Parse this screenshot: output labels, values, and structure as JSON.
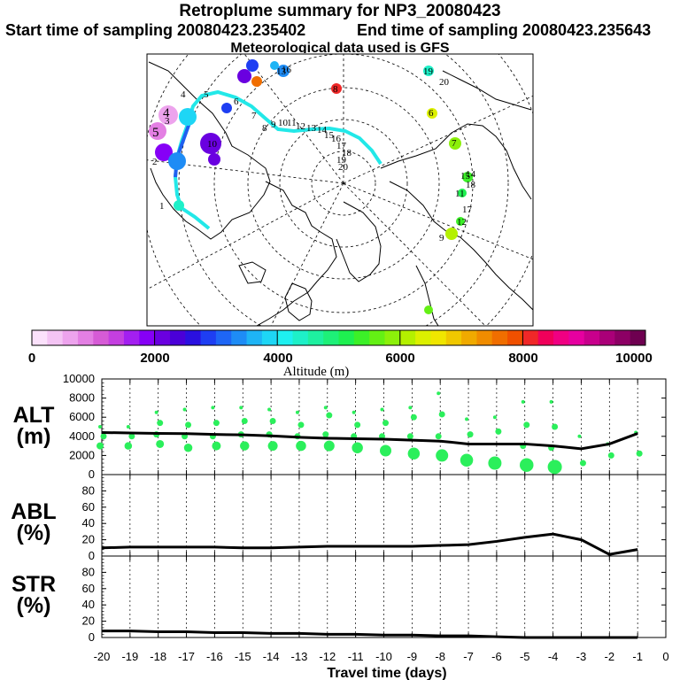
{
  "header": {
    "title": "Retroplume summary for NP3_20080423",
    "start_label": "Start time of sampling 20080423.235402",
    "end_label": "End time of sampling 20080423.235643",
    "met_label": "Meteorological data used is GFS"
  },
  "colorbar": {
    "title": "Altitude (m)",
    "tick_labels": [
      "0",
      "2000",
      "4000",
      "6000",
      "8000",
      "10000"
    ],
    "min": 0,
    "max": 10000,
    "colors": [
      "#fbe1fb",
      "#f4c4f4",
      "#eda3ed",
      "#e37fe3",
      "#d65bd6",
      "#c43fe0",
      "#a31ff0",
      "#8600f6",
      "#6a00e0",
      "#4a00d8",
      "#2a10e0",
      "#1e3ef2",
      "#1e66f5",
      "#1e8cf5",
      "#1eb4f5",
      "#1ed6f5",
      "#1ef0f0",
      "#1ef0c8",
      "#1ef0a0",
      "#1ef078",
      "#1ef050",
      "#3cf028",
      "#64f014",
      "#8cf00a",
      "#b4f000",
      "#dcf000",
      "#f0e600",
      "#f0c800",
      "#f0aa00",
      "#f08c00",
      "#f06e00",
      "#f05000",
      "#f02828",
      "#f0005a",
      "#f00082",
      "#e600a0",
      "#c8008c",
      "#aa0078",
      "#8c0064",
      "#6e0050"
    ]
  },
  "map": {
    "trajectory_labels": [
      "4",
      "5",
      "6",
      "7",
      "8",
      "9",
      "10",
      "11",
      "12",
      "13",
      "14",
      "15",
      "16",
      "17",
      "18",
      "19",
      "20"
    ],
    "cluster_labels": [
      "1",
      "2",
      "3",
      "4",
      "5",
      "6",
      "7",
      "8",
      "9",
      "10",
      "11",
      "12",
      "13",
      "14",
      "15",
      "16",
      "17",
      "18",
      "19",
      "20"
    ]
  },
  "chart_data": [
    {
      "type": "scatter",
      "title": "ALT (m)",
      "ylabel_line1": "ALT",
      "ylabel_line2": "(m)",
      "ylim": [
        0,
        10000
      ],
      "yticks": [
        "0",
        "2000",
        "4000",
        "6000",
        "8000",
        "10000"
      ],
      "xlim": [
        -20,
        0
      ],
      "mean_line": {
        "x": [
          -20,
          -19,
          -18,
          -17,
          -16,
          -15,
          -14,
          -13,
          -12,
          -11,
          -10,
          -9,
          -8,
          -7,
          -6,
          -5,
          -4,
          -3,
          -2,
          -1
        ],
        "y": [
          4400,
          4350,
          4300,
          4280,
          4200,
          4150,
          4050,
          3900,
          3800,
          3750,
          3700,
          3600,
          3500,
          3200,
          3200,
          3200,
          3000,
          2700,
          3200,
          4300
        ]
      },
      "clusters": [
        {
          "x": -20,
          "y": [
            5000,
            4000,
            3000
          ]
        },
        {
          "x": -19,
          "y": [
            5000,
            4000,
            3000
          ]
        },
        {
          "x": -18,
          "y": [
            6500,
            5400,
            4200,
            3200
          ]
        },
        {
          "x": -17,
          "y": [
            6800,
            5200,
            4000,
            2800
          ]
        },
        {
          "x": -16,
          "y": [
            7000,
            5400,
            4000,
            3000
          ]
        },
        {
          "x": -15,
          "y": [
            7000,
            5600,
            4200,
            3000
          ]
        },
        {
          "x": -14,
          "y": [
            6800,
            5600,
            4200,
            3000
          ]
        },
        {
          "x": -13,
          "y": [
            6500,
            5200,
            4000,
            3000
          ]
        },
        {
          "x": -12,
          "y": [
            7000,
            6200,
            4200,
            3000
          ]
        },
        {
          "x": -11,
          "y": [
            6500,
            5200,
            4000,
            2800
          ]
        },
        {
          "x": -10,
          "y": [
            6800,
            5400,
            4000,
            2500
          ]
        },
        {
          "x": -9,
          "y": [
            7000,
            6000,
            4000,
            2200
          ]
        },
        {
          "x": -8,
          "y": [
            8500,
            6300,
            4000,
            2000
          ]
        },
        {
          "x": -7,
          "y": [
            5800,
            4200,
            1500
          ]
        },
        {
          "x": -6,
          "y": [
            6000,
            4500,
            1200
          ]
        },
        {
          "x": -5,
          "y": [
            7600,
            5200,
            3000,
            1000
          ]
        },
        {
          "x": -4,
          "y": [
            7600,
            5000,
            2800,
            800
          ]
        },
        {
          "x": -3,
          "y": [
            4000,
            1200
          ]
        },
        {
          "x": -2,
          "y": [
            3200,
            2000
          ]
        },
        {
          "x": -1,
          "y": [
            4400,
            2200
          ]
        }
      ]
    },
    {
      "type": "line",
      "title": "ABL (%)",
      "ylabel_line1": "ABL",
      "ylabel_line2": "(%)",
      "ylim": [
        0,
        100
      ],
      "yticks": [
        "0",
        "20",
        "40",
        "60",
        "80"
      ],
      "x": [
        -20,
        -19,
        -18,
        -17,
        -16,
        -15,
        -14,
        -13,
        -12,
        -11,
        -10,
        -9,
        -8,
        -7,
        -6,
        -5,
        -4,
        -3,
        -2,
        -1
      ],
      "y": [
        10,
        11,
        11,
        11,
        11,
        10,
        10,
        11,
        12,
        12,
        12,
        12,
        13,
        14,
        18,
        23,
        27,
        20,
        2,
        8
      ]
    },
    {
      "type": "line",
      "title": "STR (%)",
      "ylabel_line1": "STR",
      "ylabel_line2": "(%)",
      "ylim": [
        0,
        100
      ],
      "yticks": [
        "0",
        "20",
        "40",
        "60",
        "80"
      ],
      "x": [
        -20,
        -19,
        -18,
        -17,
        -16,
        -15,
        -14,
        -13,
        -12,
        -11,
        -10,
        -9,
        -8,
        -7,
        -6,
        -5,
        -4,
        -3,
        -2,
        -1
      ],
      "y": [
        8,
        8,
        7,
        7,
        6,
        6,
        5,
        5,
        4,
        4,
        3,
        3,
        2,
        2,
        1,
        0,
        0,
        0,
        0,
        0
      ]
    }
  ],
  "xaxis": {
    "label": "Travel time (days)",
    "tick_labels": [
      "-20",
      "-19",
      "-18",
      "-17",
      "-16",
      "-15",
      "-14",
      "-13",
      "-12",
      "-11",
      "-10",
      "-9",
      "-8",
      "-7",
      "-6",
      "-5",
      "-4",
      "-3",
      "-2",
      "-1",
      "0"
    ]
  },
  "colors": {
    "marker": "#2bef5b",
    "line": "#000000",
    "trajectory": "#22e8e8"
  }
}
